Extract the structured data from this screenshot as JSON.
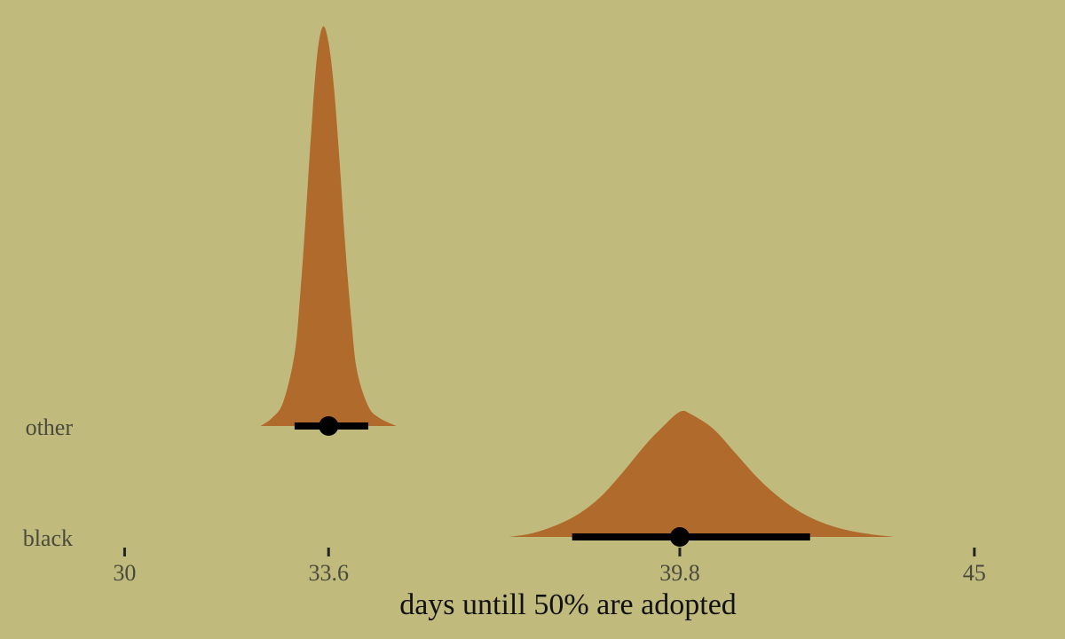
{
  "chart_data": {
    "type": "halfeye",
    "xlabel": "days untill 50% are adopted",
    "ylabel": "",
    "title": "",
    "xlim": [
      27.8,
      46.6
    ],
    "xticks": [
      30,
      33.6,
      39.8,
      45
    ],
    "tick_labels": [
      "30",
      "33.6",
      "39.8",
      "45"
    ],
    "categories": [
      "black",
      "other"
    ],
    "grid": false,
    "colors": {
      "background": "#c0bb7d",
      "density_fill": "#b06a2c",
      "interval": "#000000"
    },
    "series": [
      {
        "category": "other",
        "point": 33.6,
        "interval": [
          33.0,
          34.3
        ],
        "density_range": [
          32.4,
          34.8
        ],
        "density": [
          [
            32.4,
            0.0
          ],
          [
            32.6,
            0.02
          ],
          [
            32.8,
            0.06
          ],
          [
            33.0,
            0.18
          ],
          [
            33.1,
            0.33
          ],
          [
            33.2,
            0.53
          ],
          [
            33.3,
            0.75
          ],
          [
            33.4,
            0.93
          ],
          [
            33.5,
            1.0
          ],
          [
            33.6,
            0.96
          ],
          [
            33.7,
            0.84
          ],
          [
            33.8,
            0.65
          ],
          [
            33.9,
            0.44
          ],
          [
            34.0,
            0.27
          ],
          [
            34.1,
            0.14
          ],
          [
            34.3,
            0.05
          ],
          [
            34.5,
            0.02
          ],
          [
            34.8,
            0.0
          ]
        ]
      },
      {
        "category": "black",
        "point": 39.8,
        "interval": [
          37.9,
          42.1
        ],
        "density_range": [
          36.8,
          43.6
        ],
        "density": [
          [
            36.8,
            0.0
          ],
          [
            37.2,
            0.03
          ],
          [
            37.6,
            0.09
          ],
          [
            38.0,
            0.18
          ],
          [
            38.4,
            0.32
          ],
          [
            38.8,
            0.52
          ],
          [
            39.2,
            0.74
          ],
          [
            39.5,
            0.88
          ],
          [
            39.8,
            1.0
          ],
          [
            40.0,
            0.98
          ],
          [
            40.4,
            0.86
          ],
          [
            40.8,
            0.66
          ],
          [
            41.2,
            0.46
          ],
          [
            41.6,
            0.3
          ],
          [
            42.0,
            0.18
          ],
          [
            42.4,
            0.1
          ],
          [
            42.8,
            0.05
          ],
          [
            43.2,
            0.02
          ],
          [
            43.6,
            0.0
          ]
        ]
      }
    ]
  }
}
